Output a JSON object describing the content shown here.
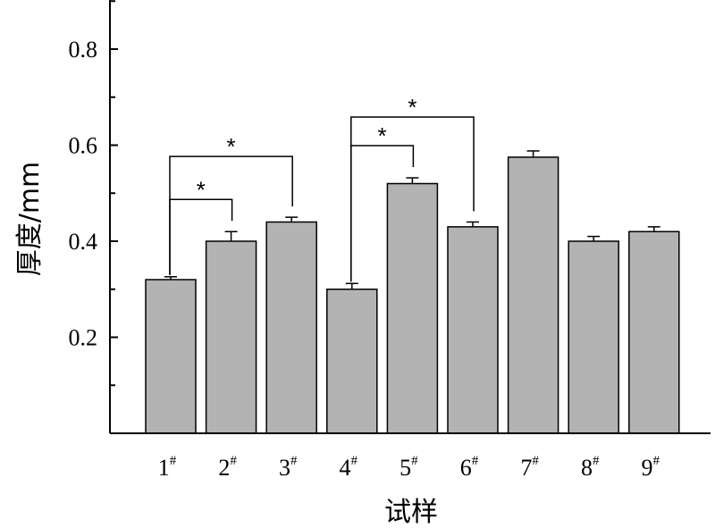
{
  "chart_data": {
    "type": "bar",
    "title": "",
    "xlabel": "试样",
    "ylabel": "厚度/mm",
    "categories": [
      "1",
      "2",
      "3",
      "4",
      "5",
      "6",
      "7",
      "8",
      "9"
    ],
    "category_superscript": "#",
    "values": [
      0.32,
      0.4,
      0.44,
      0.3,
      0.52,
      0.43,
      0.575,
      0.4,
      0.42
    ],
    "errors": [
      0.006,
      0.02,
      0.01,
      0.012,
      0.012,
      0.01,
      0.013,
      0.01,
      0.01
    ],
    "yticks": [
      "0.2",
      "0.4",
      "0.6",
      "0.8"
    ],
    "ytick_values": [
      0.2,
      0.4,
      0.6,
      0.8
    ],
    "ylim": [
      0,
      0.9
    ],
    "grid": false,
    "bar_color": "#b3b3b3",
    "significance": [
      {
        "from": 1,
        "to": 2,
        "level": 1,
        "label": "*"
      },
      {
        "from": 1,
        "to": 3,
        "level": 2,
        "label": "*"
      },
      {
        "from": 4,
        "to": 5,
        "level": 1,
        "label": "*"
      },
      {
        "from": 4,
        "to": 6,
        "level": 2,
        "label": "*"
      }
    ]
  }
}
